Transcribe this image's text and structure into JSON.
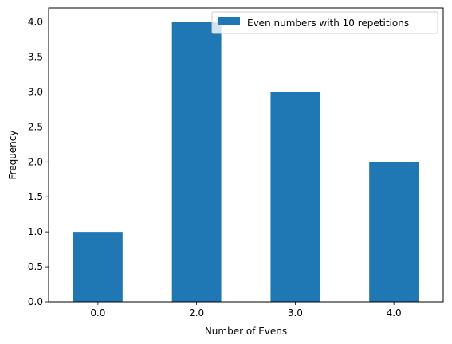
{
  "chart_data": {
    "type": "bar",
    "categories": [
      "0.0",
      "2.0",
      "3.0",
      "4.0"
    ],
    "series": [
      {
        "name": "Even numbers with 10 repetitions",
        "values": [
          1,
          4,
          3,
          2
        ],
        "color": "#1f77b4"
      }
    ],
    "xlabel": "Number of Evens",
    "ylabel": "Frequency",
    "ylim": [
      0,
      4.2
    ],
    "yticks": [
      "0.0",
      "0.5",
      "1.0",
      "1.5",
      "2.0",
      "2.5",
      "3.0",
      "3.5",
      "4.0"
    ],
    "grid": false,
    "legend_position": "upper right"
  }
}
